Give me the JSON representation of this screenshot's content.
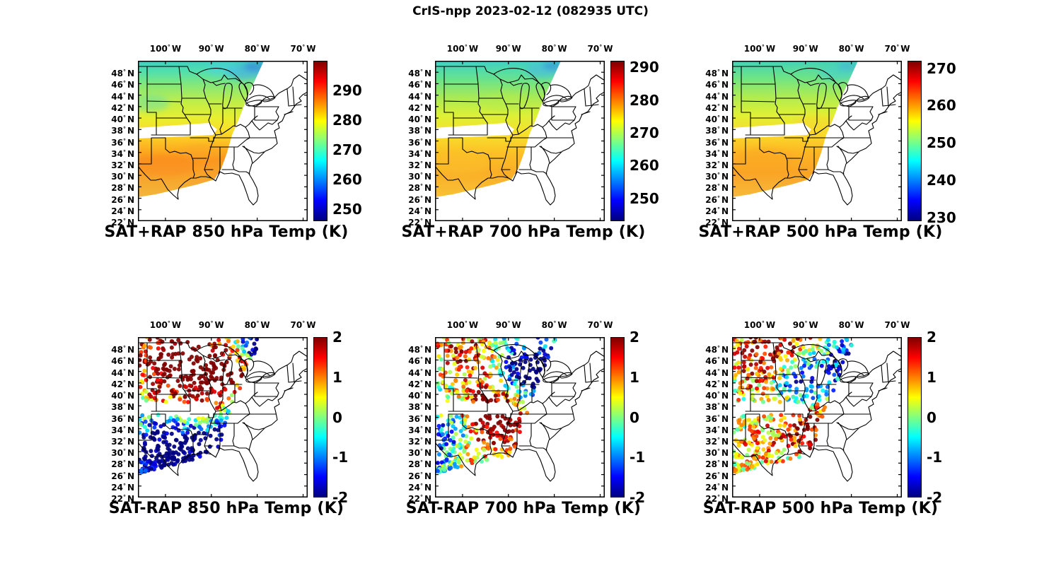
{
  "figure": {
    "title": "CrIS-npp 2023-02-12 (082935 UTC)"
  },
  "axes": {
    "lon_ticks": [
      "100°W",
      "90°W",
      "80°W",
      "70°W"
    ],
    "lat_ticks": [
      "48°N",
      "46°N",
      "44°N",
      "42°N",
      "40°N",
      "38°N",
      "36°N",
      "34°N",
      "32°N",
      "30°N",
      "28°N",
      "26°N",
      "24°N",
      "22°N"
    ]
  },
  "chart_data": {
    "type": "map-panels",
    "colormap": "jet",
    "panels": [
      {
        "id": "sat_plus_rap_850",
        "type": "heatmap",
        "title": "SAT+RAP 850 hPa Temp (K)",
        "units": "K",
        "colorbar_ticks": [
          290,
          280,
          270,
          260,
          250
        ],
        "vmin": 246,
        "vmax": 300,
        "approx_values_K": {
          "48N": 268,
          "44N": 274,
          "40N": 279,
          "36N": 284,
          "32N": 286
        }
      },
      {
        "id": "sat_plus_rap_700",
        "type": "heatmap",
        "title": "SAT+RAP 700 hPa Temp (K)",
        "units": "K",
        "colorbar_ticks": [
          290,
          280,
          270,
          260,
          250
        ],
        "vmin": 243,
        "vmax": 292,
        "approx_values_K": {
          "48N": 263,
          "44N": 268,
          "40N": 272,
          "36N": 276,
          "32N": 278
        }
      },
      {
        "id": "sat_plus_rap_500",
        "type": "heatmap",
        "title": "SAT+RAP 500 hPa Temp (K)",
        "units": "K",
        "colorbar_ticks": [
          270,
          260,
          250,
          240,
          230
        ],
        "vmin": 229,
        "vmax": 272,
        "approx_values_K": {
          "48N": 247,
          "44N": 250,
          "40N": 253,
          "36N": 256,
          "32N": 258
        }
      },
      {
        "id": "sat_minus_rap_850",
        "type": "scatter",
        "title": "SAT-RAP 850 hPa Temp (K)",
        "units": "K",
        "colorbar_ticks": [
          2,
          1,
          0,
          -1,
          -2
        ],
        "vmin": -2,
        "vmax": 2,
        "pattern": "warm differences up to +2 K clustered over the Dakotas, Minnesota, Wisconsin and Michigan; cold differences to -2 K over Texas, the lower Mississippi valley and along the swath edges"
      },
      {
        "id": "sat_minus_rap_700",
        "type": "scatter",
        "title": "SAT-RAP 700 hPa Temp (K)",
        "units": "K",
        "colorbar_ticks": [
          2,
          1,
          0,
          -1,
          -2
        ],
        "vmin": -2,
        "vmax": 2,
        "pattern": "mixed warm and cold differences; warm cluster over Missouri, Arkansas and Illinois, cold cluster over the Great Lakes and scattered cold near the swath edges"
      },
      {
        "id": "sat_minus_rap_500",
        "type": "scatter",
        "title": "SAT-RAP 500 hPa Temp (K)",
        "units": "K",
        "colorbar_ticks": [
          2,
          1,
          0,
          -1,
          -2
        ],
        "vmin": -2,
        "vmax": 2,
        "pattern": "warm differences across the northern tier and the mid-South, cold band over the central Midwest and scattered cold near the swath edges"
      }
    ]
  }
}
